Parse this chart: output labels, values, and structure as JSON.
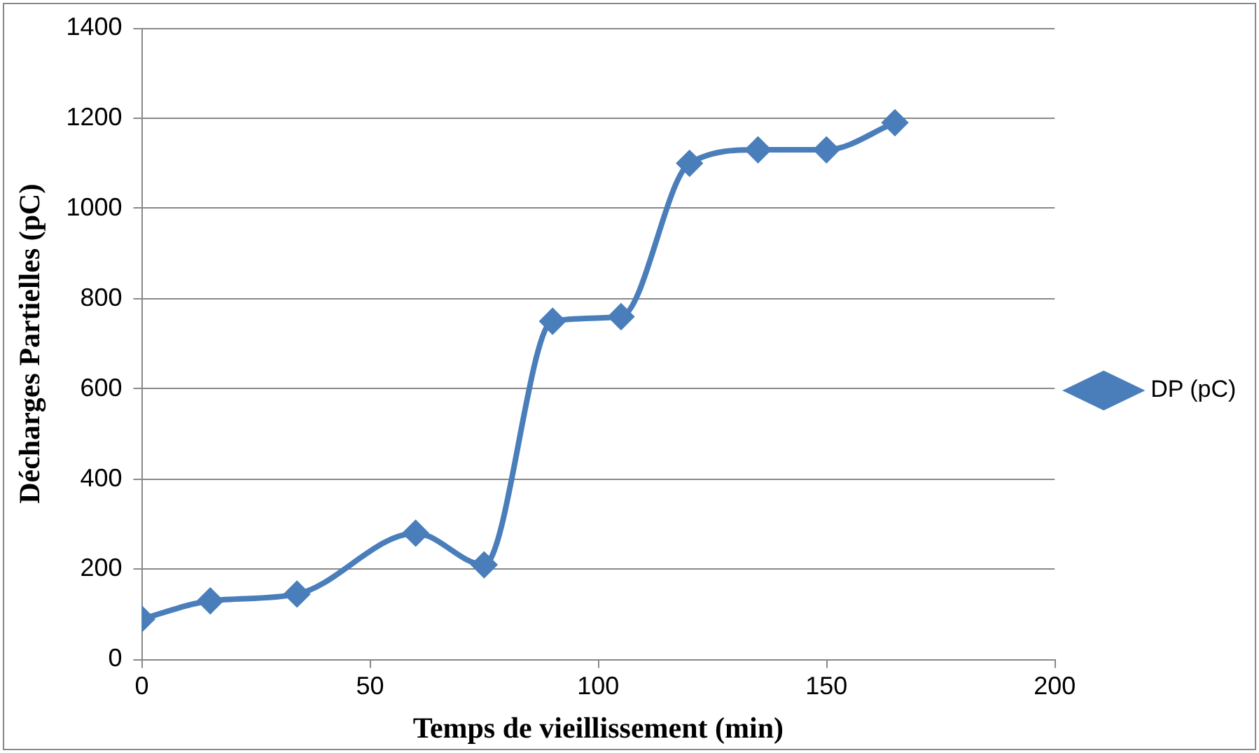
{
  "chart_data": {
    "type": "line",
    "xlabel": "Temps de vieillissement (min)",
    "ylabel": "Décharges Partielles (pC)",
    "x": [
      0,
      15,
      34,
      60,
      75,
      90,
      105,
      120,
      135,
      150,
      165
    ],
    "series": [
      {
        "name": "DP (pC)",
        "color": "#4a7ebb",
        "values": [
          90,
          130,
          145,
          280,
          210,
          750,
          760,
          1100,
          1130,
          1130,
          1190
        ]
      }
    ],
    "xlim": [
      0,
      200
    ],
    "xticks": [
      0,
      50,
      100,
      150,
      200
    ],
    "ylim": [
      0,
      1400
    ],
    "yticks": [
      0,
      200,
      400,
      600,
      800,
      1000,
      1200,
      1400
    ],
    "grid": "y",
    "legend": "right",
    "marker": "diamond",
    "line_style": "solid"
  }
}
